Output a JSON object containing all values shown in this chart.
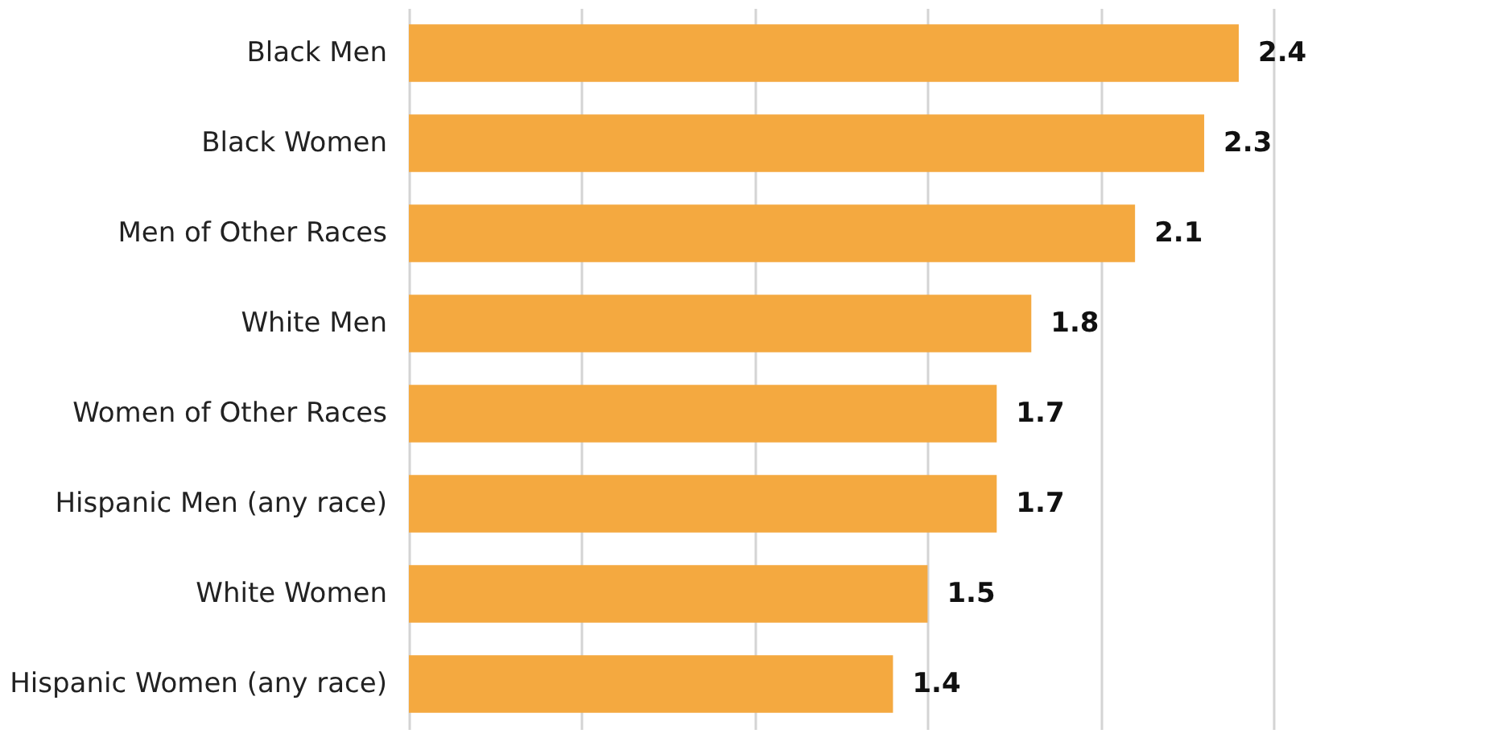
{
  "chart_data": {
    "type": "bar",
    "orientation": "horizontal",
    "categories": [
      "Black Men",
      "Black Women",
      "Men of Other Races",
      "White Men",
      "Women of Other Races",
      "Hispanic Men (any race)",
      "White Women",
      "Hispanic Women (any race)"
    ],
    "values": [
      2.4,
      2.3,
      2.1,
      1.8,
      1.7,
      1.7,
      1.5,
      1.4
    ],
    "color": "#f4a940",
    "xlim": [
      0,
      2.5
    ],
    "xticks": [
      {
        "value": 0,
        "label": null
      },
      {
        "value": 0.5,
        "label": null
      },
      {
        "value": 1,
        "label": null
      },
      {
        "value": 1.5,
        "label": null
      },
      {
        "value": 2,
        "label": null
      },
      {
        "value": 2.5,
        "label": null
      }
    ],
    "grid": "x",
    "tick_labels": "y",
    "data_labels": true
  }
}
